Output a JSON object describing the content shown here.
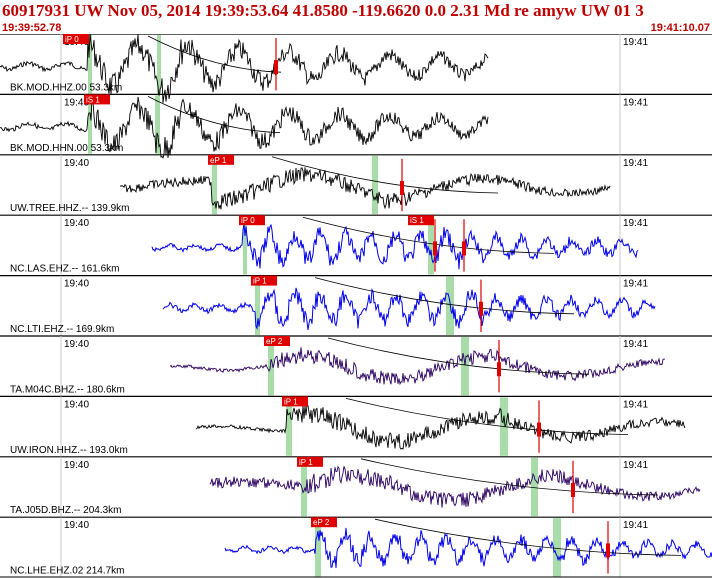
{
  "header": {
    "title": "60917931 UW Nov 05, 2014 19:39:53.64   41.8580 -119.6620  0.0 2.31 Md re amyw UW 01   3",
    "start_time": "19:39:52.78",
    "end_time": "19:41:10.07"
  },
  "time_labels": {
    "left": "19:40",
    "right": "19:41"
  },
  "colors": {
    "red": "#e00000",
    "black_trace": "#000000",
    "blue_trace": "#0000ee",
    "purple_trace": "#2a0060",
    "green_marker": "#a8dca8",
    "grid": "#c8c8c8"
  },
  "traces": [
    {
      "label": "BK.MOD.HHZ.00 53.3km",
      "color": "black",
      "pick": "iP 0"
    },
    {
      "label": "BK.MOD.HHN.00 53.3km",
      "color": "black",
      "pick": "iS 1"
    },
    {
      "label": "UW.TREE.HHZ.-- 139.9km",
      "color": "black",
      "pick": "eP 1"
    },
    {
      "label": "NC.LAS.EHZ.-- 161.6km",
      "color": "blue",
      "pick": "iP 0",
      "pick2": "iS 1"
    },
    {
      "label": "NC.LTI.EHZ.-- 169.9km",
      "color": "blue",
      "pick": "iP 1"
    },
    {
      "label": "TA.M04C.BHZ.-- 180.6km",
      "color": "purple",
      "pick": "eP 2"
    },
    {
      "label": "UW.IRON.HHZ.-- 193.0km",
      "color": "black",
      "pick": "iP 1"
    },
    {
      "label": "TA.J05D.BHZ.-- 204.3km",
      "color": "purple",
      "pick": "iP 1"
    },
    {
      "label": "NC.LHE.EHZ.02 214.7km",
      "color": "blue",
      "pick": "eP 2"
    }
  ]
}
